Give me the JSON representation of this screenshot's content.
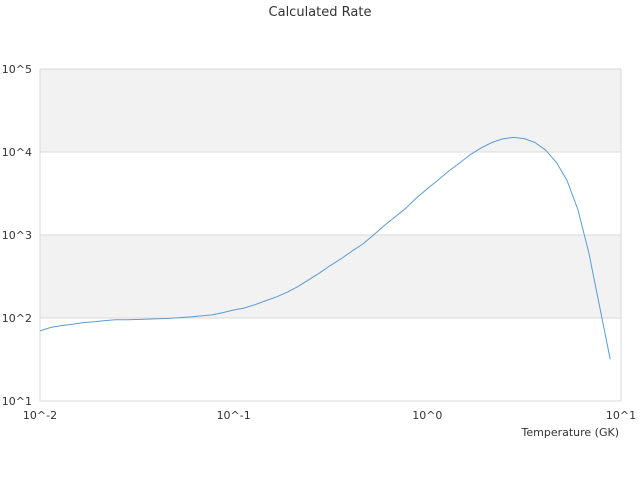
{
  "chart_data": {
    "type": "line",
    "title": "Calculated Rate",
    "xlabel": "Temperature (GK)",
    "ylabel": "",
    "x_scale": "log",
    "y_scale": "log",
    "xlim": [
      0.01,
      10
    ],
    "ylim": [
      10,
      100000
    ],
    "x_ticks": [
      0.01,
      0.1,
      1,
      10
    ],
    "x_tick_labels": [
      "10^-2",
      "10^-1",
      "10^0",
      "10^1"
    ],
    "y_ticks": [
      10,
      100,
      1000,
      10000,
      100000
    ],
    "y_tick_labels": [
      "10^1",
      "10^2",
      "10^3",
      "10^4",
      "10^5"
    ],
    "grid": "alternating horizontal bands",
    "legend": "none",
    "colors": {
      "line": "#5b9bd5",
      "band": "#f2f2f2",
      "gridline": "#d9d9d9",
      "axis_text": "#333333"
    },
    "series": [
      {
        "x": [
          0.01,
          0.0114,
          0.0129,
          0.0147,
          0.0167,
          0.019,
          0.0216,
          0.0245,
          0.0278,
          0.0316,
          0.0359,
          0.0408,
          0.0464,
          0.0527,
          0.0599,
          0.0681,
          0.0774,
          0.088,
          0.1,
          0.1136,
          0.1292,
          0.1468,
          0.1668,
          0.1896,
          0.2154,
          0.2448,
          0.2783,
          0.3162,
          0.3594,
          0.4084,
          0.4642,
          0.5275,
          0.5995,
          0.6813,
          0.7743,
          0.8799,
          1.0,
          1.1365,
          1.2915,
          1.4678,
          1.6681,
          1.8957,
          2.1544,
          2.4484,
          2.7826,
          3.1623,
          3.5938,
          4.0842,
          4.6416,
          5.2749,
          5.9948,
          6.8129,
          7.7426,
          8.7992
        ],
        "y": [
          70,
          77,
          81,
          84,
          88,
          90,
          93,
          95,
          95,
          96,
          97,
          98,
          99,
          101,
          103,
          106,
          109,
          116,
          125,
          132,
          145,
          162,
          180,
          205,
          240,
          290,
          350,
          430,
          520,
          640,
          780,
          1000,
          1300,
          1650,
          2100,
          2800,
          3600,
          4600,
          5900,
          7400,
          9300,
          11200,
          13000,
          14400,
          15000,
          14500,
          13000,
          10500,
          7500,
          4500,
          2000,
          620,
          140,
          32
        ]
      }
    ]
  }
}
